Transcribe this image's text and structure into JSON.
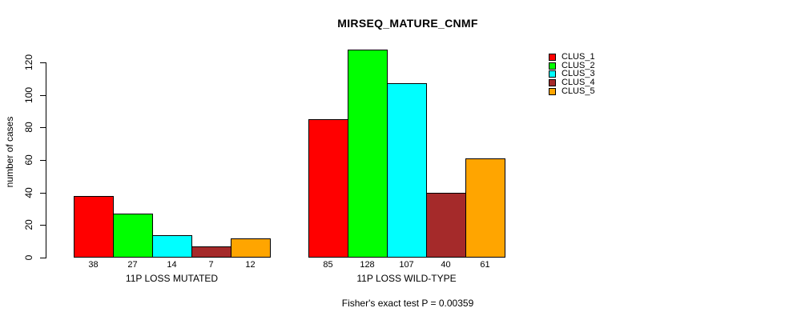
{
  "chart_data": {
    "type": "bar",
    "title": "MIRSEQ_MATURE_CNMF",
    "ylabel": "number of cases",
    "xlabel": "",
    "categories": [
      "11P LOSS MUTATED",
      "11P LOSS WILD-TYPE"
    ],
    "series": [
      {
        "name": "CLUS_1",
        "color": "#FF0000",
        "values": [
          38,
          85
        ]
      },
      {
        "name": "CLUS_2",
        "color": "#00FF00",
        "values": [
          27,
          128
        ]
      },
      {
        "name": "CLUS_3",
        "color": "#00FFFF",
        "values": [
          14,
          107
        ]
      },
      {
        "name": "CLUS_4",
        "color": "#A52A2A",
        "values": [
          7,
          40
        ]
      },
      {
        "name": "CLUS_5",
        "color": "#FFA500",
        "values": [
          12,
          61
        ]
      }
    ],
    "yticks": [
      0,
      20,
      40,
      60,
      80,
      100,
      120
    ],
    "ylim": [
      0,
      128
    ],
    "grid": false,
    "legend_position": "top-right",
    "bar_value_labels": true,
    "annotation": "Fisher's exact test P = 0.00359"
  }
}
